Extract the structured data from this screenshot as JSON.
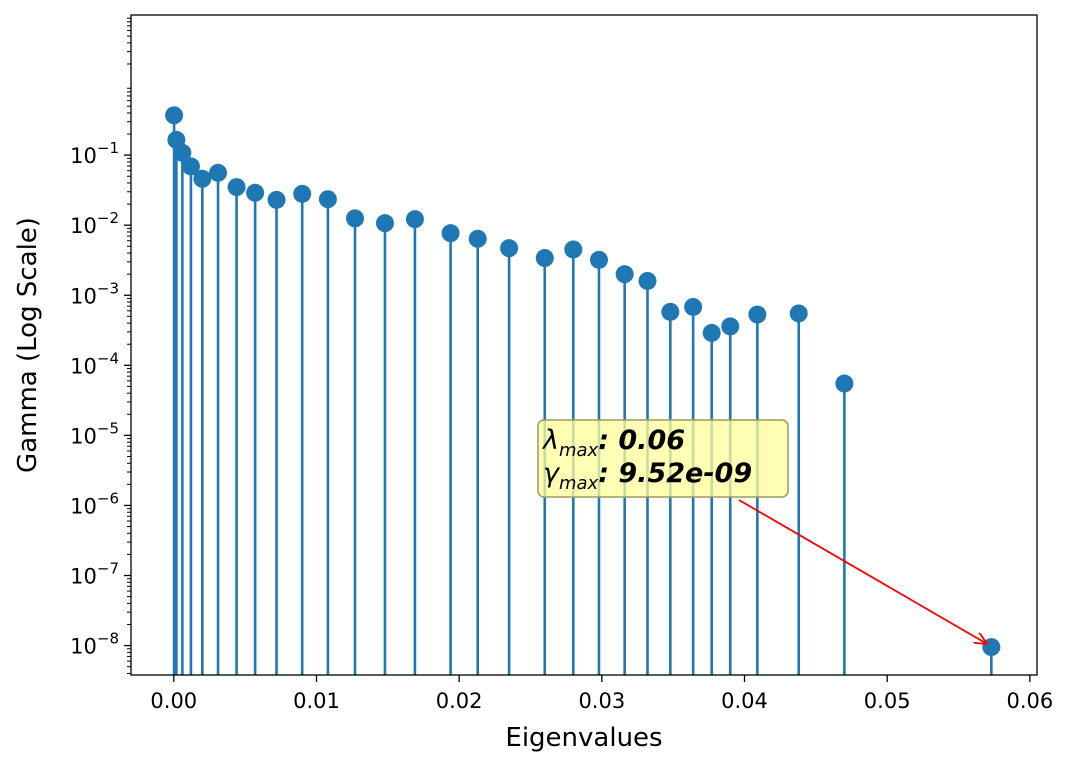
{
  "chart_data": {
    "type": "stem",
    "title": "",
    "xlabel": "Eigenvalues",
    "ylabel": "Gamma (Log Scale)",
    "yscale": "log",
    "xlim": [
      -0.003,
      0.0605
    ],
    "ylim_exponent": [
      -8.42,
      1.0
    ],
    "grid": false,
    "x_ticks": [
      0.0,
      0.01,
      0.02,
      0.03,
      0.04,
      0.05,
      0.06
    ],
    "x_tick_labels": [
      "0.00",
      "0.01",
      "0.02",
      "0.03",
      "0.04",
      "0.05",
      "0.06"
    ],
    "y_tick_exponents": [
      -1,
      -2,
      -3,
      -4,
      -5,
      -6,
      -7,
      -8
    ],
    "y_tick_base": "10",
    "y_tick_exponent_labels": [
      "−1",
      "−2",
      "−3",
      "−4",
      "−5",
      "−6",
      "−7",
      "−8"
    ],
    "series": [
      {
        "name": "gamma",
        "color": "#1f77b4",
        "x": [
          2e-05,
          0.00018,
          0.0006,
          0.0012,
          0.002,
          0.0031,
          0.0044,
          0.0057,
          0.0072,
          0.009,
          0.0108,
          0.0127,
          0.0148,
          0.0169,
          0.0194,
          0.0213,
          0.0235,
          0.026,
          0.028,
          0.0298,
          0.0316,
          0.0332,
          0.0348,
          0.0364,
          0.0377,
          0.039,
          0.0409,
          0.0438,
          0.047,
          0.0573
        ],
        "y": [
          0.37,
          0.165,
          0.108,
          0.069,
          0.046,
          0.056,
          0.035,
          0.029,
          0.023,
          0.028,
          0.0235,
          0.0125,
          0.0107,
          0.0122,
          0.0077,
          0.0064,
          0.0047,
          0.0034,
          0.0045,
          0.0032,
          0.002,
          0.0016,
          0.00058,
          0.00068,
          0.00029,
          0.00036,
          0.00053,
          0.00055,
          5.5e-05,
          9.52e-09
        ]
      }
    ],
    "annotation": {
      "lambda_symbol": "λ",
      "gamma_symbol": "γ",
      "subscript": "max",
      "lambda_value": ": 0.06",
      "gamma_value": ": 9.52e-09",
      "box_color": "#ffff99",
      "arrow_color": "#ff0000",
      "target_x": 0.0573,
      "target_y": 9.52e-09
    }
  }
}
